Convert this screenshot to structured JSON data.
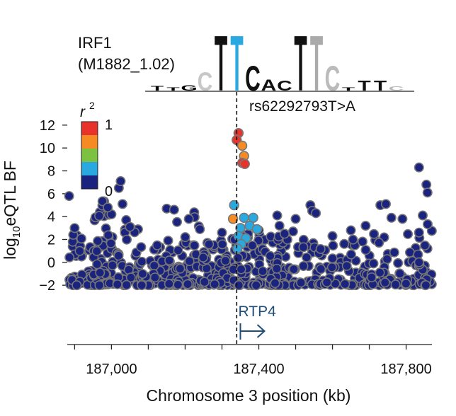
{
  "chart_data": {
    "type": "scatter",
    "motif": {
      "name": "IRF1",
      "id": "(M1882_1.02)",
      "letters": [
        {
          "ch": "T",
          "color": "#000000",
          "h": 0.08
        },
        {
          "ch": "T",
          "color": "#000000",
          "h": 0.06
        },
        {
          "ch": "G",
          "color": "#000000",
          "h": 0.1
        },
        {
          "ch": "C",
          "color": "#c8c8c8",
          "h": 0.33
        },
        {
          "ch": "T",
          "color": "#111111",
          "h": 1.0
        },
        {
          "ch": "T",
          "color": "#2aa8e0",
          "h": 1.0
        },
        {
          "ch": "C",
          "color": "#111111",
          "h": 0.45
        },
        {
          "ch": "A",
          "color": "#111111",
          "h": 0.2
        },
        {
          "ch": "C",
          "color": "#111111",
          "h": 0.18
        },
        {
          "ch": "T",
          "color": "#111111",
          "h": 1.0
        },
        {
          "ch": "T",
          "color": "#aaaaaa",
          "h": 1.0
        },
        {
          "ch": "C",
          "color": "#bbbbbb",
          "h": 0.45
        },
        {
          "ch": "T",
          "color": "#000000",
          "h": 0.06
        },
        {
          "ch": "T",
          "color": "#111111",
          "h": 0.18
        },
        {
          "ch": "T",
          "color": "#111111",
          "h": 0.18
        },
        {
          "ch": "C",
          "color": "#bbbbbb",
          "h": 0.07
        }
      ]
    },
    "lead_snp": {
      "label": "rs62292793T>A",
      "x_kb": 187340
    },
    "gene": {
      "name": "RTP4",
      "start_kb": 187350,
      "strand": "+"
    },
    "xlabel": "Chromosome 3 position (kb)",
    "ylabel_prefix": "log",
    "ylabel_sub": "10",
    "ylabel_suffix": "eQTL BF",
    "xlim": [
      186880,
      187870
    ],
    "ylim": [
      -2.3,
      12.3
    ],
    "xticks": [
      186900,
      187000,
      187100,
      187200,
      187300,
      187400,
      187500,
      187600,
      187700,
      187800
    ],
    "xtick_labels": [
      "187,000",
      "187,400",
      "187,800"
    ],
    "xtick_label_values": [
      187000,
      187400,
      187800
    ],
    "yticks": [
      -2,
      0,
      2,
      4,
      6,
      8,
      10,
      12
    ],
    "ytick_labels": [
      "−2",
      "0",
      "2",
      "4",
      "6",
      "8",
      "10",
      "12"
    ],
    "legend": {
      "title": "r",
      "title_sup": "2",
      "max_label": "1",
      "min_label": "0",
      "colors": [
        "#e8332a",
        "#f58b22",
        "#7cc142",
        "#2aa8e0",
        "#1a237e"
      ],
      "placement": "top-left"
    },
    "r2_colors": {
      "r2_0": "#1a237e",
      "r2_02": "#2aa8e0",
      "r2_04": "#7cc142",
      "r2_06": "#f58b22",
      "r2_08": "#e8332a"
    },
    "highlight_points": [
      {
        "x": 187345,
        "y": 11.3,
        "r2": "r2_08"
      },
      {
        "x": 187340,
        "y": 10.7,
        "r2": "r2_08"
      },
      {
        "x": 187355,
        "y": 10.2,
        "r2": "r2_06"
      },
      {
        "x": 187360,
        "y": 9.3,
        "r2": "r2_06"
      },
      {
        "x": 187355,
        "y": 8.7,
        "r2": "r2_08"
      },
      {
        "x": 187362,
        "y": 8.6,
        "r2": "r2_08"
      },
      {
        "x": 187333,
        "y": 5.0,
        "r2": "r2_02"
      },
      {
        "x": 187330,
        "y": 3.8,
        "r2": "r2_06"
      },
      {
        "x": 187360,
        "y": 3.9,
        "r2": "r2_02"
      },
      {
        "x": 187385,
        "y": 3.9,
        "r2": "r2_02"
      },
      {
        "x": 187350,
        "y": 3.0,
        "r2": "r2_02"
      },
      {
        "x": 187375,
        "y": 3.2,
        "r2": "r2_02"
      },
      {
        "x": 187395,
        "y": 2.9,
        "r2": "r2_02"
      },
      {
        "x": 187345,
        "y": 2.3,
        "r2": "r2_02"
      },
      {
        "x": 187365,
        "y": 2.1,
        "r2": "r2_02"
      },
      {
        "x": 187352,
        "y": 1.6,
        "r2": "r2_02"
      },
      {
        "x": 187342,
        "y": 1.2,
        "r2": "r2_02"
      }
    ],
    "background_clusters": [
      {
        "x0": 186885,
        "x1": 187010,
        "n": 70,
        "yMax": 2.5
      },
      {
        "x0": 186950,
        "x1": 187005,
        "n": 40,
        "yMax": 5.5
      },
      {
        "x0": 187010,
        "x1": 187080,
        "n": 40,
        "yMax": 3.5
      },
      {
        "x0": 187080,
        "x1": 187230,
        "n": 90,
        "yMax": 1.5
      },
      {
        "x0": 187150,
        "x1": 187240,
        "n": 40,
        "yMax": 4.6
      },
      {
        "x0": 187240,
        "x1": 187330,
        "n": 70,
        "yMax": 2.2
      },
      {
        "x0": 187330,
        "x1": 187480,
        "n": 100,
        "yMax": 2.6
      },
      {
        "x0": 187430,
        "x1": 187560,
        "n": 60,
        "yMax": 4.0
      },
      {
        "x0": 187560,
        "x1": 187690,
        "n": 60,
        "yMax": 2.2
      },
      {
        "x0": 187690,
        "x1": 187830,
        "n": 70,
        "yMax": 2.6
      },
      {
        "x0": 187830,
        "x1": 187870,
        "n": 30,
        "yMax": 3.5
      }
    ],
    "background_peaks": [
      {
        "x": 186885,
        "y": 5.8
      },
      {
        "x": 186900,
        "y": 3.0
      },
      {
        "x": 187000,
        "y": 4.2
      },
      {
        "x": 187020,
        "y": 6.5
      },
      {
        "x": 187025,
        "y": 7.1
      },
      {
        "x": 187030,
        "y": 5.1
      },
      {
        "x": 187040,
        "y": 3.7
      },
      {
        "x": 187050,
        "y": 3.1
      },
      {
        "x": 186990,
        "y": 4.8
      },
      {
        "x": 187150,
        "y": 4.7
      },
      {
        "x": 187170,
        "y": 4.6
      },
      {
        "x": 187210,
        "y": 3.8
      },
      {
        "x": 187240,
        "y": 2.9
      },
      {
        "x": 187300,
        "y": 2.6
      },
      {
        "x": 187450,
        "y": 4.1
      },
      {
        "x": 187500,
        "y": 3.8
      },
      {
        "x": 187540,
        "y": 5.0
      },
      {
        "x": 187545,
        "y": 4.5
      },
      {
        "x": 187555,
        "y": 4.3
      },
      {
        "x": 187600,
        "y": 2.3
      },
      {
        "x": 187650,
        "y": 2.8
      },
      {
        "x": 187690,
        "y": 3.2
      },
      {
        "x": 187730,
        "y": 5.0
      },
      {
        "x": 187745,
        "y": 5.1
      },
      {
        "x": 187760,
        "y": 3.9
      },
      {
        "x": 187790,
        "y": 3.8
      },
      {
        "x": 187835,
        "y": 8.3
      },
      {
        "x": 187855,
        "y": 6.8
      },
      {
        "x": 187858,
        "y": 6.1
      },
      {
        "x": 187845,
        "y": 4.1
      },
      {
        "x": 187470,
        "y": 2.5
      },
      {
        "x": 187400,
        "y": 2.8
      }
    ]
  }
}
